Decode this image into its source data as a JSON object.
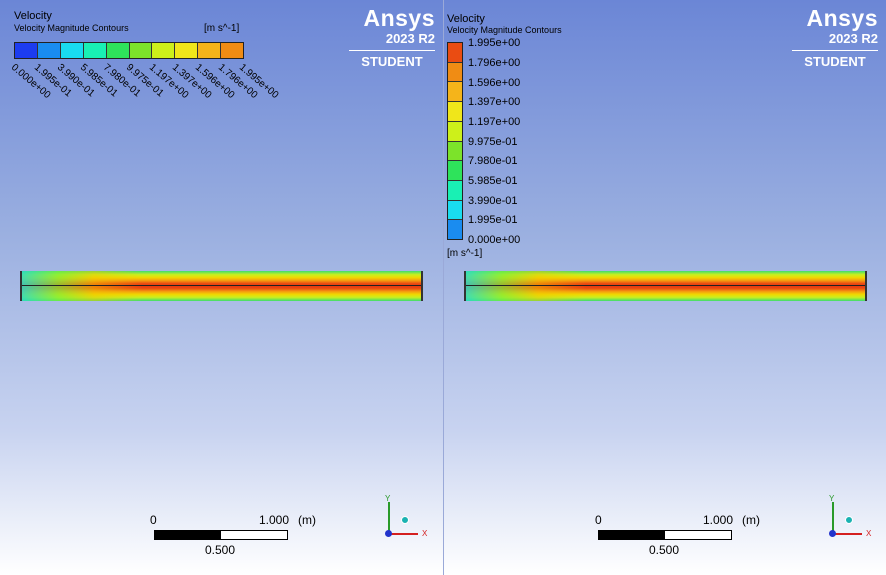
{
  "left_view": {
    "legend": {
      "title": "Velocity",
      "subtitle": "Velocity Magnitude Contours",
      "unit": "[m s^-1]",
      "labels": [
        "0.000e+00",
        "1.995e-01",
        "3.990e-01",
        "5.985e-01",
        "7.980e-01",
        "9.975e-01",
        "1.197e+00",
        "1.397e+00",
        "1.596e+00",
        "1.796e+00",
        "1.995e+00"
      ]
    },
    "brand": {
      "name": "Ansys",
      "version": "2023 R2",
      "edition": "STUDENT"
    },
    "scale": {
      "left": "0",
      "right": "1.000",
      "unit": "(m)",
      "mid": "0.500"
    },
    "triad": {
      "x": "X",
      "y": "Y"
    }
  },
  "right_view": {
    "legend": {
      "title": "Velocity",
      "subtitle": "Velocity Magnitude Contours",
      "unit": "[m s^-1]",
      "labels": [
        "1.995e+00",
        "1.796e+00",
        "1.596e+00",
        "1.397e+00",
        "1.197e+00",
        "9.975e-01",
        "7.980e-01",
        "5.985e-01",
        "3.990e-01",
        "1.995e-01",
        "0.000e+00"
      ]
    },
    "brand": {
      "name": "Ansys",
      "version": "2023 R2",
      "edition": "STUDENT"
    },
    "scale": {
      "left": "0",
      "right": "1.000",
      "unit": "(m)",
      "mid": "0.500"
    },
    "triad": {
      "x": "X",
      "y": "Y"
    }
  },
  "colormap": [
    "#1c3cf0",
    "#1a8cf0",
    "#19dcf0",
    "#19f0b4",
    "#2ee35b",
    "#7ce32a",
    "#cdf01a",
    "#f0e61a",
    "#f5b41a",
    "#f08c14",
    "#ea4c12"
  ]
}
